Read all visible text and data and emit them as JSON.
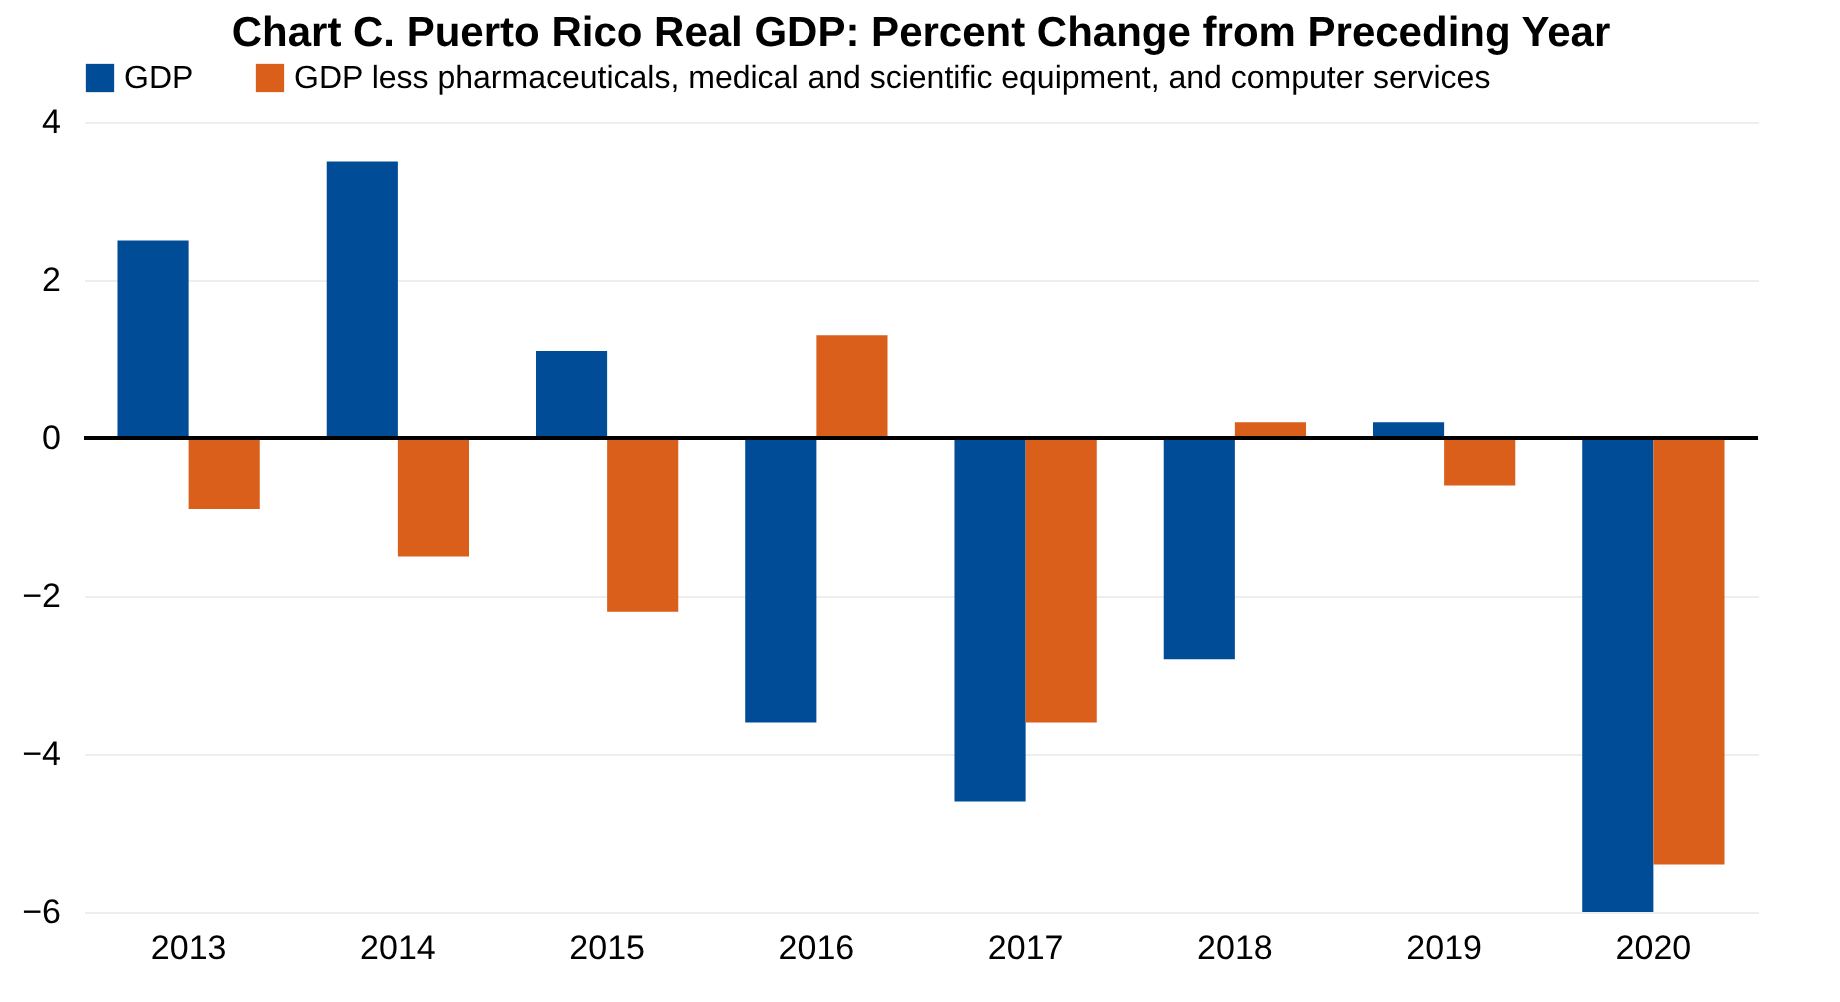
{
  "chart_data": {
    "type": "bar",
    "title": "Chart C. Puerto Rico Real GDP: Percent Change from Preceding Year",
    "categories": [
      "2013",
      "2014",
      "2015",
      "2016",
      "2017",
      "2018",
      "2019",
      "2020"
    ],
    "series": [
      {
        "name": "GDP",
        "color": "#004c97",
        "values": [
          2.5,
          3.5,
          1.1,
          -3.6,
          -4.6,
          -2.8,
          0.2,
          -6.0
        ]
      },
      {
        "name": "GDP less pharmaceuticals, medical and scientific equipment, and computer services",
        "color": "#d95f1a",
        "values": [
          -0.9,
          -1.5,
          -2.2,
          1.3,
          -3.6,
          0.2,
          -0.6,
          -5.4
        ]
      }
    ],
    "ylim": [
      -6,
      4
    ],
    "yticks": [
      {
        "value": -6,
        "label": "−6"
      },
      {
        "value": -4,
        "label": "−4"
      },
      {
        "value": -2,
        "label": "−2"
      },
      0,
      2,
      4
    ],
    "ref_lines": [
      {
        "axis": "y",
        "value": 0,
        "color": "#000000"
      }
    ],
    "grid": "y",
    "legend": "top"
  }
}
